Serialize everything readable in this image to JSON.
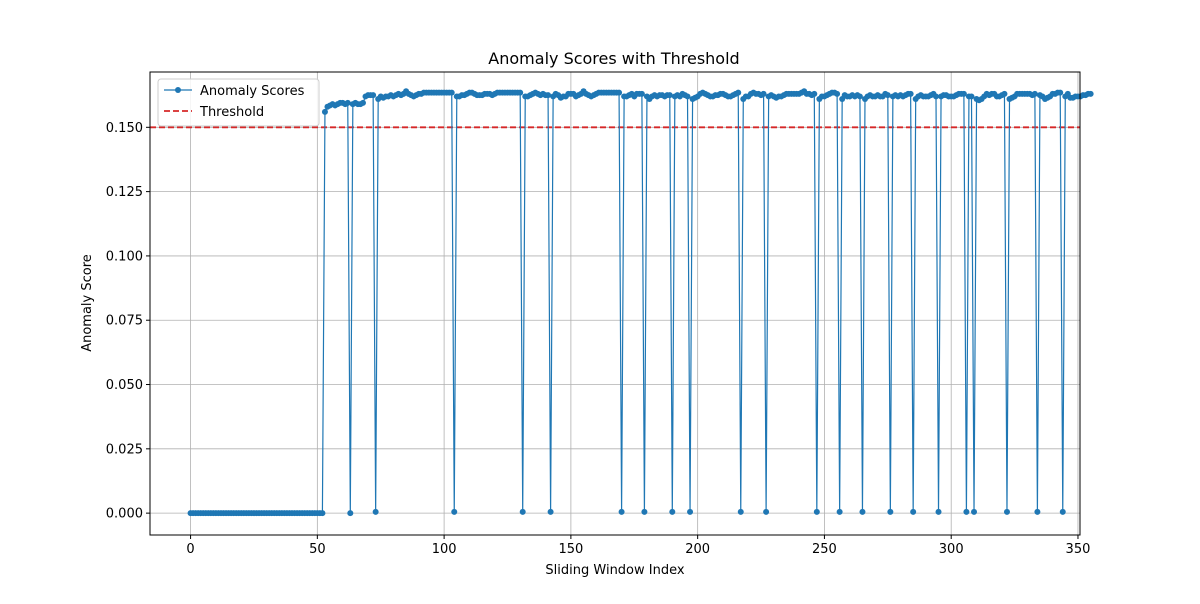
{
  "chart_data": {
    "type": "line",
    "title": "Anomaly Scores with Threshold",
    "xlabel": "Sliding Window Index",
    "ylabel": "Anomaly Score",
    "xlim": [
      -16,
      350.8
    ],
    "ylim": [
      -0.0085,
      0.1715
    ],
    "x_ticks": [
      0,
      50,
      100,
      150,
      200,
      250,
      300,
      350
    ],
    "x_tick_labels": [
      "0",
      "50",
      "100",
      "150",
      "200",
      "250",
      "300",
      "350"
    ],
    "y_ticks": [
      0.0,
      0.025,
      0.05,
      0.075,
      0.1,
      0.125,
      0.15
    ],
    "y_tick_labels": [
      "0.000",
      "0.025",
      "0.050",
      "0.075",
      "0.100",
      "0.125",
      "0.150"
    ],
    "grid": true,
    "legend": {
      "placement": "top-left",
      "entries": [
        "Anomaly Scores",
        "Threshold"
      ]
    },
    "threshold": {
      "name": "Threshold",
      "value": 0.15,
      "color": "#d62728",
      "style": "dashed"
    },
    "series": [
      {
        "name": "Anomaly Scores",
        "color": "#1f77b4",
        "x_start": 0,
        "x_step": 1,
        "values": [
          0.0,
          0.0,
          0.0,
          0.0,
          0.0,
          0.0,
          0.0,
          0.0,
          0.0,
          0.0,
          0.0,
          0.0,
          0.0,
          0.0,
          0.0,
          0.0,
          0.0,
          0.0,
          0.0,
          0.0,
          0.0,
          0.0,
          0.0,
          0.0,
          0.0,
          0.0,
          0.0,
          0.0,
          0.0,
          0.0,
          0.0,
          0.0,
          0.0,
          0.0,
          0.0,
          0.0,
          0.0,
          0.0,
          0.0,
          0.0,
          0.0,
          0.0,
          0.0,
          0.0,
          0.0,
          0.0,
          0.0,
          0.0,
          0.0,
          0.0,
          0.0,
          0.0,
          0.0,
          0.156,
          0.158,
          0.1585,
          0.159,
          0.1585,
          0.159,
          0.1595,
          0.1595,
          0.159,
          0.1595,
          0.0,
          0.159,
          0.1595,
          0.159,
          0.159,
          0.1595,
          0.162,
          0.1625,
          0.1625,
          0.1625,
          0.0005,
          0.161,
          0.162,
          0.1615,
          0.162,
          0.162,
          0.1625,
          0.162,
          0.1625,
          0.163,
          0.1625,
          0.163,
          0.164,
          0.163,
          0.1625,
          0.162,
          0.1625,
          0.163,
          0.163,
          0.1635,
          0.1635,
          0.1635,
          0.1635,
          0.1635,
          0.1635,
          0.1635,
          0.1635,
          0.1635,
          0.1635,
          0.1635,
          0.1635,
          0.0005,
          0.162,
          0.162,
          0.1625,
          0.1625,
          0.163,
          0.1635,
          0.1635,
          0.163,
          0.1625,
          0.1625,
          0.1625,
          0.163,
          0.163,
          0.163,
          0.1625,
          0.163,
          0.1635,
          0.1635,
          0.1635,
          0.1635,
          0.1635,
          0.1635,
          0.1635,
          0.1635,
          0.1635,
          0.1635,
          0.0005,
          0.162,
          0.162,
          0.1625,
          0.163,
          0.1635,
          0.163,
          0.1625,
          0.163,
          0.1625,
          0.1625,
          0.0005,
          0.162,
          0.163,
          0.1625,
          0.1615,
          0.162,
          0.162,
          0.163,
          0.163,
          0.163,
          0.162,
          0.1625,
          0.163,
          0.164,
          0.163,
          0.1625,
          0.162,
          0.1625,
          0.163,
          0.1635,
          0.1635,
          0.1635,
          0.1635,
          0.1635,
          0.1635,
          0.1635,
          0.1635,
          0.1635,
          0.0005,
          0.162,
          0.162,
          0.1625,
          0.163,
          0.162,
          0.163,
          0.163,
          0.163,
          0.0005,
          0.162,
          0.161,
          0.162,
          0.1625,
          0.162,
          0.1625,
          0.1625,
          0.162,
          0.1625,
          0.1625,
          0.0005,
          0.162,
          0.1625,
          0.162,
          0.163,
          0.1625,
          0.162,
          0.0005,
          0.161,
          0.1615,
          0.162,
          0.163,
          0.1635,
          0.163,
          0.1625,
          0.162,
          0.162,
          0.1625,
          0.1625,
          0.163,
          0.163,
          0.1625,
          0.162,
          0.162,
          0.1625,
          0.163,
          0.1635,
          0.0005,
          0.161,
          0.162,
          0.162,
          0.163,
          0.1635,
          0.163,
          0.163,
          0.1625,
          0.163,
          0.0005,
          0.162,
          0.1625,
          0.162,
          0.1615,
          0.162,
          0.162,
          0.1625,
          0.163,
          0.163,
          0.163,
          0.163,
          0.163,
          0.163,
          0.1635,
          0.164,
          0.163,
          0.163,
          0.1625,
          0.163,
          0.0005,
          0.161,
          0.162,
          0.162,
          0.1625,
          0.163,
          0.1635,
          0.1635,
          0.163,
          0.0005,
          0.161,
          0.1625,
          0.162,
          0.162,
          0.1625,
          0.162,
          0.1625,
          0.162,
          0.0005,
          0.161,
          0.162,
          0.1625,
          0.162,
          0.162,
          0.1625,
          0.162,
          0.162,
          0.163,
          0.1625,
          0.0005,
          0.162,
          0.1625,
          0.162,
          0.1625,
          0.162,
          0.1625,
          0.163,
          0.163,
          0.0005,
          0.161,
          0.162,
          0.1625,
          0.162,
          0.162,
          0.162,
          0.1625,
          0.163,
          0.162,
          0.0005,
          0.162,
          0.1625,
          0.1625,
          0.162,
          0.162,
          0.162,
          0.1625,
          0.163,
          0.163,
          0.163,
          0.0005,
          0.162,
          0.162,
          0.0005,
          0.161,
          0.1605,
          0.161,
          0.162,
          0.163,
          0.1625,
          0.163,
          0.163,
          0.162,
          0.162,
          0.1625,
          0.163,
          0.0005,
          0.161,
          0.1615,
          0.162,
          0.163,
          0.163,
          0.163,
          0.163,
          0.163,
          0.163,
          0.1625,
          0.163,
          0.0005,
          0.1625,
          0.162,
          0.161,
          0.1615,
          0.162,
          0.163,
          0.163,
          0.1635,
          0.1635,
          0.0005,
          0.162,
          0.163,
          0.1615,
          0.1615,
          0.162,
          0.162,
          0.162,
          0.1625,
          0.1625,
          0.163,
          0.163
        ]
      }
    ]
  }
}
